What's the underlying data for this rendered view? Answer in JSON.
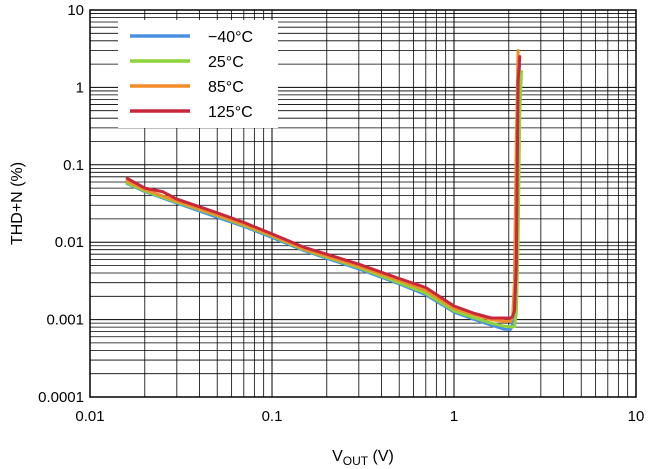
{
  "chart_data": {
    "type": "line",
    "xlabel_main": "V",
    "xlabel_sub": "OUT",
    "xlabel_unit": " (V)",
    "ylabel": "THD+N (%)",
    "x_scale": "log",
    "y_scale": "log",
    "xlim": [
      0.01,
      10
    ],
    "ylim": [
      0.0001,
      10
    ],
    "x_tick_labels": [
      "0.01",
      "0.1",
      "1",
      "10"
    ],
    "y_tick_labels": [
      "10",
      "1",
      "0.1",
      "0.01",
      "0.001",
      "0.0001"
    ],
    "grid": true,
    "legend_position": "top-left",
    "series": [
      {
        "name": "−40°C",
        "color": "#4a90e2",
        "x": [
          0.016,
          0.02,
          0.03,
          0.05,
          0.07,
          0.1,
          0.15,
          0.2,
          0.3,
          0.5,
          0.7,
          1.0,
          1.3,
          1.6,
          1.9,
          2.05,
          2.1,
          2.15,
          2.2,
          2.25,
          2.3
        ],
        "y": [
          0.057,
          0.045,
          0.032,
          0.021,
          0.016,
          0.0115,
          0.0078,
          0.0062,
          0.0045,
          0.0029,
          0.0021,
          0.00125,
          0.001,
          0.00085,
          0.00075,
          0.00075,
          0.0009,
          0.003,
          0.1,
          1.0,
          2.0
        ]
      },
      {
        "name": "25°C",
        "color": "#8cd43a",
        "x": [
          0.016,
          0.02,
          0.03,
          0.05,
          0.07,
          0.1,
          0.15,
          0.2,
          0.3,
          0.5,
          0.7,
          1.0,
          1.3,
          1.6,
          1.9,
          2.1,
          2.15,
          2.2,
          2.25,
          2.3,
          2.35
        ],
        "y": [
          0.058,
          0.046,
          0.033,
          0.022,
          0.0165,
          0.012,
          0.008,
          0.0064,
          0.0047,
          0.003,
          0.0022,
          0.0013,
          0.00105,
          0.0009,
          0.00082,
          0.0008,
          0.00082,
          0.0012,
          0.01,
          0.5,
          1.6
        ]
      },
      {
        "name": "85°C",
        "color": "#f28c28",
        "x": [
          0.016,
          0.02,
          0.03,
          0.05,
          0.07,
          0.1,
          0.15,
          0.2,
          0.3,
          0.5,
          0.7,
          1.0,
          1.3,
          1.6,
          1.9,
          2.05,
          2.1,
          2.15,
          2.2,
          2.25
        ],
        "y": [
          0.062,
          0.048,
          0.034,
          0.0225,
          0.017,
          0.0122,
          0.0082,
          0.0066,
          0.0049,
          0.0032,
          0.0024,
          0.0014,
          0.00115,
          0.001,
          0.00095,
          0.00095,
          0.0011,
          0.003,
          0.2,
          3.0
        ]
      },
      {
        "name": "125°C",
        "color": "#c8283c",
        "x": [
          0.016,
          0.02,
          0.025,
          0.03,
          0.05,
          0.07,
          0.1,
          0.15,
          0.2,
          0.3,
          0.5,
          0.7,
          1.0,
          1.3,
          1.6,
          1.9,
          2.05,
          2.1,
          2.15,
          2.2,
          2.25,
          2.3
        ],
        "y": [
          0.067,
          0.05,
          0.045,
          0.036,
          0.024,
          0.018,
          0.0128,
          0.0086,
          0.007,
          0.0052,
          0.0034,
          0.0026,
          0.0015,
          0.0012,
          0.00105,
          0.00105,
          0.00105,
          0.0011,
          0.0013,
          0.005,
          1.2,
          2.5
        ]
      }
    ]
  }
}
